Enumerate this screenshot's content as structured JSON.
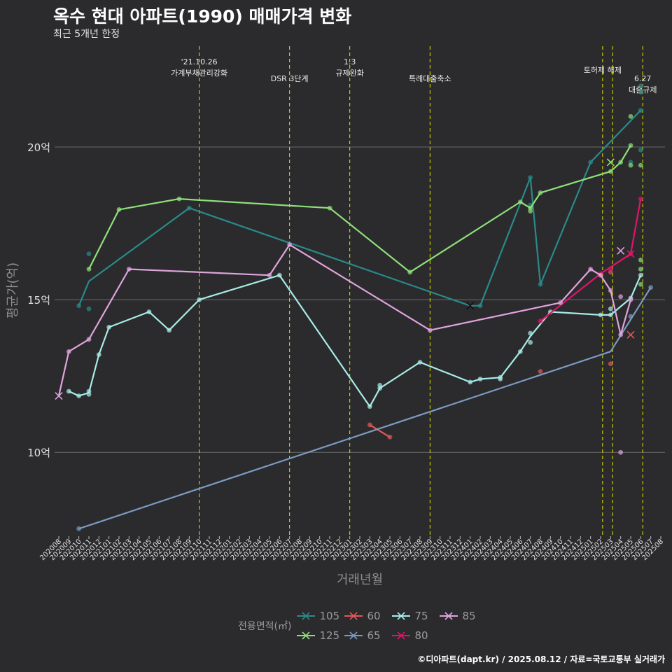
{
  "title": "옥수 현대 아파트(1990) 매매가격 변화",
  "subtitle": "최근 5개년 한정",
  "caption": "©디아파트(dapt.kr) / 2025.08.12 / 자료=국토교통부 실거래가",
  "chart_data": {
    "type": "line",
    "xlabel": "거래년월",
    "ylabel": "평균가(억)",
    "ylim": [
      7.3,
      23.3
    ],
    "yticks": [
      {
        "value": 10,
        "label": "10억"
      },
      {
        "value": 15,
        "label": "15억"
      },
      {
        "value": 20,
        "label": "20억"
      }
    ],
    "x_ticks": [
      "202008",
      "202009",
      "202010",
      "202011",
      "202012",
      "202101",
      "202102",
      "202103",
      "202104",
      "202105",
      "202106",
      "202107",
      "202108",
      "202109",
      "202110",
      "202111",
      "202112",
      "202201",
      "202202",
      "202203",
      "202204",
      "202205",
      "202206",
      "202207",
      "202208",
      "202209",
      "202210",
      "202211",
      "202212",
      "202301",
      "202302",
      "202303",
      "202304",
      "202305",
      "202306",
      "202307",
      "202308",
      "202309",
      "202310",
      "202311",
      "202312",
      "202401",
      "202402",
      "202403",
      "202404",
      "202405",
      "202406",
      "202407",
      "202408",
      "202409",
      "202410",
      "202411",
      "202412",
      "202501",
      "202502",
      "202503",
      "202504",
      "202505",
      "202506",
      "202507",
      "202508"
    ],
    "legend_title": "전용면적(㎡)",
    "legend_placement": "bottom",
    "events": [
      {
        "x": 14.0,
        "label_lines": [
          "'21.10.26",
          "가계부채관리강화"
        ],
        "row": 0
      },
      {
        "x": 23.0,
        "label_lines": [
          "DSR 3단계"
        ],
        "row": 1
      },
      {
        "x": 29.0,
        "label_lines": [
          "1.3",
          "규제완화"
        ],
        "row": 0
      },
      {
        "x": 37.0,
        "label_lines": [
          "특례대출축소"
        ],
        "row": 1
      },
      {
        "x": 54.2,
        "label_lines": [
          "토허제 해제"
        ],
        "row": 0.5
      },
      {
        "x": 55.2,
        "label_lines": [],
        "row": 0
      },
      {
        "x": 58.2,
        "label_lines": [
          "6.27",
          "대출규제"
        ],
        "row": 1
      }
    ],
    "series": [
      {
        "name": "105",
        "color": "#2a8a8a",
        "line": [
          [
            2,
            14.8
          ],
          [
            3,
            15.6
          ],
          [
            13,
            18
          ],
          [
            41,
            14.8
          ],
          [
            42,
            14.8
          ],
          [
            47,
            19
          ],
          [
            48,
            15.5
          ],
          [
            53,
            19.5
          ],
          [
            58,
            21.2
          ]
        ],
        "points": [
          [
            2,
            14.8
          ],
          [
            3,
            16.5
          ],
          [
            3,
            14.7
          ],
          [
            13,
            18
          ],
          [
            42,
            14.8
          ],
          [
            47,
            19
          ],
          [
            47,
            18.1
          ],
          [
            48,
            15.5
          ],
          [
            53,
            19.5
          ],
          [
            57,
            19.5
          ],
          [
            58,
            21.8
          ],
          [
            58,
            22
          ],
          [
            58,
            21.2
          ],
          [
            58,
            19.9
          ]
        ],
        "crosses": [
          [
            41,
            14.8
          ]
        ]
      },
      {
        "name": "125",
        "color": "#8fe07a",
        "line": [
          [
            3,
            16
          ],
          [
            6,
            17.95
          ],
          [
            12,
            18.3
          ],
          [
            27,
            18
          ],
          [
            35,
            15.9
          ],
          [
            46,
            18.2
          ],
          [
            47,
            18
          ],
          [
            48,
            18.5
          ],
          [
            55,
            19.2
          ],
          [
            56,
            19.5
          ],
          [
            57,
            20.05
          ]
        ],
        "points": [
          [
            3,
            16
          ],
          [
            6,
            17.95
          ],
          [
            12,
            18.3
          ],
          [
            27,
            18
          ],
          [
            35,
            15.9
          ],
          [
            46,
            18.2
          ],
          [
            47,
            18
          ],
          [
            47,
            17.9
          ],
          [
            48,
            18.5
          ],
          [
            55,
            19.2
          ],
          [
            56,
            19.5
          ],
          [
            57,
            20.05
          ],
          [
            57,
            21
          ],
          [
            57,
            19.4
          ],
          [
            58,
            19.4
          ],
          [
            58,
            16.3
          ],
          [
            58,
            16
          ],
          [
            58,
            15.5
          ]
        ],
        "crosses": [
          [
            55,
            19.5
          ]
        ]
      },
      {
        "name": "60",
        "color": "#e05858",
        "line": [
          [
            31,
            10.9
          ],
          [
            33,
            10.5
          ]
        ],
        "points": [
          [
            31,
            10.9
          ],
          [
            33,
            10.5
          ],
          [
            48,
            12.65
          ],
          [
            55,
            15.9
          ],
          [
            55,
            12.9
          ]
        ],
        "crosses": [
          [
            57,
            13.85
          ]
        ]
      },
      {
        "name": "65",
        "color": "#7b9bc0",
        "line": [
          [
            2,
            7.5
          ],
          [
            55,
            13.3
          ],
          [
            59,
            15.4
          ]
        ],
        "points": [
          [
            2,
            7.5
          ],
          [
            57,
            14.45
          ],
          [
            59,
            15.4
          ]
        ],
        "crosses": []
      },
      {
        "name": "75",
        "color": "#a8ece8",
        "line": [
          [
            1,
            12
          ],
          [
            2,
            11.85
          ],
          [
            3,
            11.95
          ],
          [
            4,
            13.2
          ],
          [
            5,
            14.1
          ],
          [
            9,
            14.6
          ],
          [
            11,
            14
          ],
          [
            14,
            15
          ],
          [
            22,
            15.8
          ],
          [
            31,
            11.5
          ],
          [
            32,
            12.1
          ],
          [
            36,
            12.95
          ],
          [
            41,
            12.3
          ],
          [
            42,
            12.4
          ],
          [
            44,
            12.45
          ],
          [
            46,
            13.3
          ],
          [
            47,
            13.8
          ],
          [
            49,
            14.6
          ],
          [
            54,
            14.5
          ],
          [
            55,
            14.5
          ],
          [
            57,
            15.05
          ],
          [
            58,
            15.8
          ]
        ],
        "points": [
          [
            1,
            12
          ],
          [
            2,
            11.85
          ],
          [
            3,
            11.9
          ],
          [
            3,
            12
          ],
          [
            4,
            13.2
          ],
          [
            5,
            14.1
          ],
          [
            9,
            14.6
          ],
          [
            11,
            14
          ],
          [
            14,
            15
          ],
          [
            22,
            15.8
          ],
          [
            31,
            11.5
          ],
          [
            32,
            12.1
          ],
          [
            32,
            12.2
          ],
          [
            36,
            12.95
          ],
          [
            41,
            12.3
          ],
          [
            42,
            12.4
          ],
          [
            44,
            12.4
          ],
          [
            44,
            12.45
          ],
          [
            46,
            13.3
          ],
          [
            47,
            13.6
          ],
          [
            47,
            13.9
          ],
          [
            49,
            14.6
          ],
          [
            54,
            14.5
          ],
          [
            55,
            14.5
          ],
          [
            55,
            14.7
          ],
          [
            57,
            15.05
          ],
          [
            58,
            15.8
          ]
        ],
        "crosses": []
      },
      {
        "name": "80",
        "color": "#e01568",
        "line": [
          [
            48,
            14.3
          ],
          [
            54,
            15.85
          ],
          [
            57,
            16.5
          ],
          [
            58,
            18.3
          ]
        ],
        "points": [
          [
            48,
            14.3
          ],
          [
            54,
            15.85
          ],
          [
            55,
            16
          ],
          [
            57,
            16.5
          ],
          [
            58,
            18.3
          ]
        ],
        "crosses": [
          [
            57,
            16.5
          ]
        ]
      },
      {
        "name": "85",
        "color": "#e0a4de",
        "line": [
          [
            0,
            11.85
          ],
          [
            1,
            13.3
          ],
          [
            3,
            13.7
          ],
          [
            7,
            16
          ],
          [
            21,
            15.8
          ],
          [
            23,
            16.8
          ],
          [
            37,
            14
          ],
          [
            50,
            14.9
          ],
          [
            53,
            16
          ],
          [
            54,
            15.8
          ],
          [
            55,
            15.3
          ],
          [
            56,
            13.85
          ],
          [
            57,
            15
          ]
        ],
        "points": [
          [
            1,
            13.3
          ],
          [
            3,
            13.7
          ],
          [
            7,
            16
          ],
          [
            21,
            15.8
          ],
          [
            23,
            16.8
          ],
          [
            37,
            14
          ],
          [
            50,
            14.9
          ],
          [
            53,
            16
          ],
          [
            54,
            15.8
          ],
          [
            55,
            15.3
          ],
          [
            56,
            15.1
          ],
          [
            56,
            10
          ],
          [
            56,
            13.85
          ],
          [
            57,
            15
          ]
        ],
        "crosses": [
          [
            0,
            11.85
          ],
          [
            56,
            16.6
          ]
        ]
      }
    ]
  }
}
